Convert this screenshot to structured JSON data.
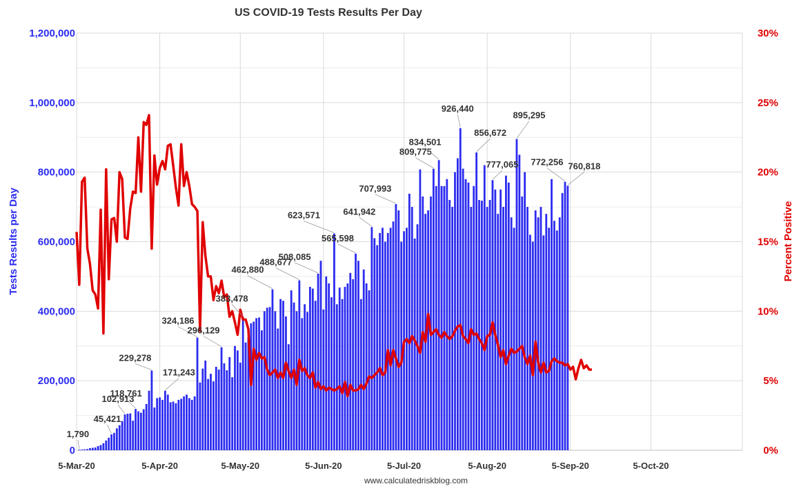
{
  "chart_data": {
    "type": "bar",
    "title": "US COVID-19 Tests Results Per Day",
    "source": "www.calculatedriskblog.com",
    "ylabel_left": "Tests Results per Day",
    "ylabel_right": "Percent Positive",
    "ylim_left": [
      0,
      1200000
    ],
    "ylim_right": [
      0,
      30
    ],
    "yticks_left": [
      "0",
      "200,000",
      "400,000",
      "600,000",
      "800,000",
      "1,000,000",
      "1,200,000"
    ],
    "yticks_right": [
      "0%",
      "5%",
      "10%",
      "15%",
      "20%",
      "25%",
      "30%"
    ],
    "xticks": [
      "5-Mar-20",
      "5-Apr-20",
      "5-May-20",
      "5-Jun-20",
      "5-Jul-20",
      "5-Aug-20",
      "5-Sep-20",
      "5-Oct-20"
    ],
    "x_start": "2020-03-05",
    "x_end": "2020-10-31",
    "grid": true,
    "bar_color": "#2b2bf0",
    "line_color": "#e00000",
    "series": [
      {
        "name": "Tests Results per Day",
        "type": "bar",
        "start_date": "2020-03-06",
        "values": [
          1790,
          2000,
          2500,
          3500,
          6000,
          7000,
          8000,
          12000,
          15000,
          20000,
          28000,
          36000,
          45421,
          50000,
          63000,
          72000,
          84000,
          102913,
          105000,
          106000,
          85000,
          118761,
          112000,
          108000,
          118000,
          133000,
          171243,
          229278,
          123000,
          150000,
          152000,
          145000,
          171243,
          160000,
          138000,
          140000,
          135000,
          145000,
          148000,
          155000,
          160000,
          150000,
          145000,
          155000,
          324186,
          195000,
          235000,
          258000,
          205000,
          220000,
          198000,
          240000,
          232000,
          296129,
          250000,
          230000,
          268000,
          210000,
          300000,
          287000,
          252000,
          383478,
          310000,
          325000,
          365000,
          370000,
          380000,
          382000,
          345000,
          400000,
          410000,
          412000,
          462880,
          400000,
          350000,
          435000,
          430000,
          385000,
          305000,
          460000,
          425000,
          400000,
          488677,
          380000,
          420000,
          398000,
          470000,
          465000,
          430000,
          508085,
          545000,
          405000,
          500000,
          480000,
          440000,
          623571,
          420000,
          468000,
          435000,
          470000,
          480000,
          510000,
          492000,
          565598,
          545000,
          435000,
          520000,
          480000,
          460000,
          641942,
          610000,
          590000,
          625000,
          640000,
          600000,
          625000,
          640000,
          658000,
          707993,
          690000,
          600000,
          630000,
          640000,
          738000,
          700000,
          609000,
          650000,
          808000,
          730000,
          680000,
          690000,
          730000,
          809775,
          760000,
          834501,
          760000,
          760000,
          780000,
          720000,
          700000,
          800000,
          840000,
          926440,
          810000,
          780000,
          770000,
          700000,
          760000,
          856672,
          720000,
          718000,
          820000,
          700000,
          720000,
          777065,
          750000,
          680000,
          750000,
          700000,
          790000,
          770000,
          670000,
          640000,
          895295,
          850000,
          730000,
          800000,
          700000,
          620000,
          600000,
          690000,
          670000,
          700000,
          618000,
          680000,
          640000,
          780000,
          660000,
          632000,
          670000,
          740000,
          772256,
          760818
        ],
        "labeled": {
          "1,790": 1790,
          "45,421": 45421,
          "102,913": 102913,
          "118,761": 118761,
          "229,278": 229278,
          "171,243": 171243,
          "324,186": 324186,
          "296,129": 296129,
          "383,478": 383478,
          "462,880": 462880,
          "488,677": 488677,
          "508,085": 508085,
          "623,571": 623571,
          "565,598": 565598,
          "641,942": 641942,
          "707,993": 707993,
          "809,775": 809775,
          "834,501": 834501,
          "926,440": 926440,
          "856,672": 856672,
          "777,065": 777065,
          "895,295": 895295,
          "772,256": 772256,
          "760,818": 760818
        }
      },
      {
        "name": "Percent Positive",
        "type": "line",
        "start_date": "2020-03-05",
        "values": [
          15.7,
          11.9,
          19.3,
          19.6,
          14.5,
          13.4,
          11.5,
          11.2,
          10.2,
          17.3,
          8.4,
          20.2,
          12.3,
          16.6,
          16.7,
          15.0,
          20.0,
          19.5,
          15.3,
          15.2,
          17.4,
          18.6,
          18.5,
          22.5,
          18.6,
          23.6,
          23.4,
          24.1,
          14.5,
          21.2,
          19.1,
          20.3,
          20.8,
          20.2,
          21.9,
          22.0,
          20.5,
          18.9,
          17.6,
          22.0,
          19.0,
          20.0,
          19.0,
          17.7,
          17.5,
          17.2,
          8.6,
          16.4,
          14.0,
          12.5,
          12.5,
          10.8,
          11.8,
          11.3,
          12.2,
          11.0,
          11.2,
          9.6,
          10.0,
          9.2,
          8.3,
          10.1,
          9.4,
          9.4,
          8.7,
          4.7,
          7.3,
          6.5,
          7.0,
          6.6,
          6.7,
          5.8,
          5.4,
          5.6,
          5.8,
          5.2,
          5.6,
          5.2,
          6.3,
          5.7,
          5.2,
          5.8,
          4.7,
          6.5,
          5.7,
          5.9,
          5.4,
          5.2,
          5.6,
          4.5,
          4.9,
          4.4,
          4.6,
          4.3,
          4.5,
          4.4,
          4.3,
          4.4,
          4.6,
          4.1,
          4.9,
          3.9,
          4.7,
          4.3,
          4.3,
          4.4,
          4.7,
          4.4,
          4.8,
          5.3,
          5.2,
          5.4,
          5.6,
          5.9,
          5.4,
          5.6,
          7.2,
          6.1,
          7.2,
          6.6,
          6.0,
          6.3,
          7.8,
          8.0,
          7.7,
          8.2,
          7.9,
          7.5,
          7.0,
          8.5,
          7.8,
          9.8,
          8.3,
          8.5,
          8.7,
          8.3,
          8.1,
          8.5,
          8.2,
          8.0,
          8.2,
          8.6,
          8.9,
          9.0,
          8.2,
          8.0,
          7.7,
          8.7,
          8.3,
          8.4,
          8.0,
          7.7,
          7.2,
          8.2,
          8.3,
          9.2,
          8.3,
          7.6,
          6.7,
          7.2,
          6.2,
          6.8,
          7.3,
          7.0,
          7.1,
          7.3,
          7.5,
          6.7,
          6.2,
          6.8,
          5.4,
          7.8,
          6.3,
          5.6,
          6.3,
          5.6,
          5.7,
          6.4,
          6.6,
          6.4,
          6.3,
          6.3,
          6.1,
          6.2,
          5.8,
          6.0,
          5.1,
          5.9,
          6.5,
          5.9,
          6.1,
          5.8,
          5.8
        ]
      }
    ]
  }
}
